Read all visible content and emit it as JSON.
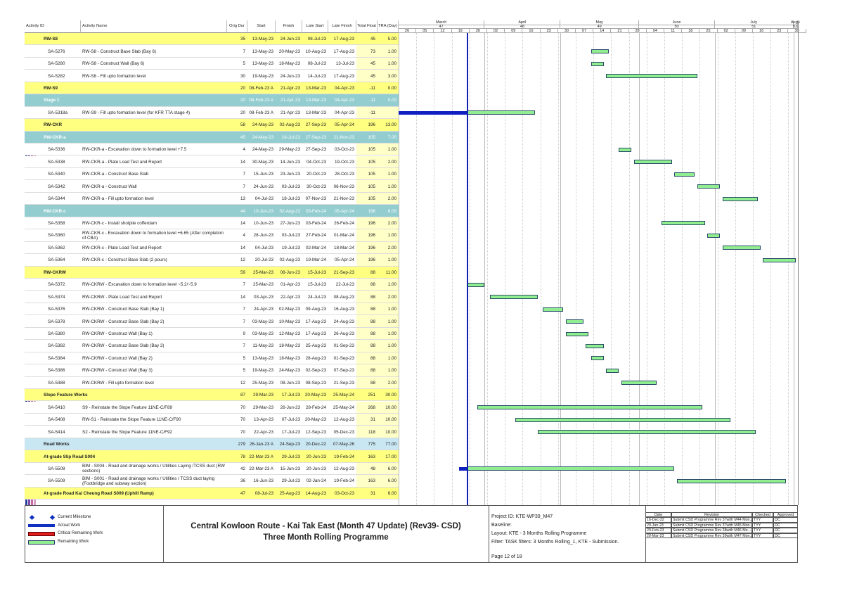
{
  "header": {
    "columns": [
      "Activity ID",
      "Activity Name",
      "Orig Dur",
      "Start",
      "Finish",
      "Late Start",
      "Late Finish",
      "Total Float",
      "TRA (Day)"
    ]
  },
  "timescale": {
    "months": [
      "March",
      "April",
      "May",
      "June",
      "July",
      "Augu"
    ],
    "periods": [
      47,
      48,
      49,
      50,
      51,
      52
    ],
    "days": [
      "26",
      "05",
      "12",
      "19",
      "26",
      "02",
      "09",
      "16",
      "23",
      "30",
      "07",
      "14",
      "21",
      "28",
      "04",
      "11",
      "18",
      "25",
      "02",
      "09",
      "16",
      "23",
      "30"
    ]
  },
  "rows": [
    {
      "id": "RW-S8",
      "dur": 35,
      "start": "13-May-23",
      "finish": "24-Jun-23",
      "late_start": "08-Jul-23",
      "late_finish": "17-Aug-23",
      "float": 45,
      "tra": "5.00",
      "fill": "#ffff80"
    },
    {
      "id": "SA-5276",
      "name": "RW-S8 - Construct Base Slab (Bay 6)",
      "dur": 7,
      "start": "13-May-23",
      "finish": "20-May-23",
      "late_start": "10-Aug-23",
      "late_finish": "17-Aug-23",
      "float": 73,
      "tra": "1.00"
    },
    {
      "id": "SA-5280",
      "name": "RW-S8 - Construct Wall (Bay 6)",
      "dur": 5,
      "start": "13-May-23",
      "finish": "18-May-23",
      "late_start": "08-Jul-23",
      "late_finish": "13-Jul-23",
      "float": 45,
      "tra": "1.00"
    },
    {
      "id": "SA-5282",
      "name": "RW-S8 - Fill upto formation level",
      "dur": 30,
      "start": "19-May-23",
      "finish": "24-Jun-23",
      "late_start": "14-Jul-23",
      "late_finish": "17-Aug-23",
      "float": 45,
      "tra": "3.00"
    },
    {
      "id": "RW-S9",
      "dur": 20,
      "start": "08-Feb-23 A",
      "finish": "21-Apr-23",
      "late_start": "13-Mar-23",
      "late_finish": "04-Apr-23",
      "float": -11,
      "tra": "0.00",
      "fill": "#ffff80"
    },
    {
      "id": "Stage 1",
      "dur": 20,
      "start": "08-Feb-23 A",
      "finish": "21-Apr-23",
      "late_start": "13-Mar-23",
      "late_finish": "04-Apr-23",
      "float": -11,
      "tra": "0.00",
      "fill": "#93cdd0",
      "ink": "#ffffff"
    },
    {
      "id": "SA-5318a",
      "name": "RW-S9 - Fill upto formation level (for KFR TTA stage 4)",
      "dur": 20,
      "start": "08-Feb-23 A",
      "finish": "21-Apr-23",
      "late_start": "13-Mar-23",
      "late_finish": "04-Apr-23",
      "float": -11
    },
    {
      "id": "RW-CKR",
      "dur": 58,
      "start": "24-May-23",
      "finish": "02-Aug-23",
      "late_start": "27-Sep-23",
      "late_finish": "05-Apr-24",
      "float": 196,
      "tra": "13.00",
      "fill": "#ffff80"
    },
    {
      "id": "RW-CKR-a",
      "dur": 45,
      "start": "24-May-23",
      "finish": "18-Jul-23",
      "late_start": "27-Sep-23",
      "late_finish": "21-Nov-23",
      "float": 105,
      "tra": "7.00",
      "fill": "#93cdd0",
      "ink": "#ffffff"
    },
    {
      "id": "SA-5336",
      "name": "RW-CKR-a - Excavation down to formation level +7.5",
      "dur": 4,
      "start": "24-May-23",
      "finish": "29-May-23",
      "late_start": "27-Sep-23",
      "late_finish": "03-Oct-23",
      "float": 105,
      "tra": "1.00"
    },
    {
      "id": "SA-5338",
      "name": "RW-CKR-a - Plate Load Test and Report",
      "dur": 14,
      "start": "30-May-23",
      "finish": "14-Jun-23",
      "late_start": "04-Oct-23",
      "late_finish": "19-Oct-23",
      "float": 105,
      "tra": "2.00"
    },
    {
      "id": "SA-5340",
      "name": "RW-CKR-a - Construct Base Slab",
      "dur": 7,
      "start": "15-Jun-23",
      "finish": "23-Jun-23",
      "late_start": "20-Oct-23",
      "late_finish": "28-Oct-23",
      "float": 105,
      "tra": "1.00"
    },
    {
      "id": "SA-5342",
      "name": "RW-CKR-a - Construct Wall",
      "dur": 7,
      "start": "24-Jun-23",
      "finish": "03-Jul-23",
      "late_start": "30-Oct-23",
      "late_finish": "06-Nov-23",
      "float": 105,
      "tra": "1.00"
    },
    {
      "id": "SA-5344",
      "name": "RW-CKR-a - Fill upto formation level",
      "dur": 13,
      "start": "04-Jul-23",
      "finish": "18-Jul-23",
      "late_start": "07-Nov-23",
      "late_finish": "21-Nov-23",
      "float": 105,
      "tra": "2.00"
    },
    {
      "id": "RW-CKR-c",
      "dur": 44,
      "start": "10-Jun-23",
      "finish": "02-Aug-23",
      "late_start": "03-Feb-24",
      "late_finish": "05-Apr-24",
      "float": 196,
      "tra": "6.00",
      "fill": "#93cdd0",
      "ink": "#ffffff"
    },
    {
      "id": "SA-5358",
      "name": "RW-CKR-c - Install shotpile cofferdam",
      "dur": 14,
      "start": "10-Jun-23",
      "finish": "27-Jun-23",
      "late_start": "03-Feb-24",
      "late_finish": "26-Feb-24",
      "float": 196,
      "tra": "2.00"
    },
    {
      "id": "SA-5360",
      "name": "RW-CKR-c - Excavation down to formation level +6.65 (After completion of CBA)",
      "dur": 4,
      "start": "28-Jun-23",
      "finish": "03-Jul-23",
      "late_start": "27-Feb-24",
      "late_finish": "01-Mar-24",
      "float": 196,
      "tra": "1.00"
    },
    {
      "id": "SA-5362",
      "name": "RW-CKR-c - Plate Load Test and Report",
      "dur": 14,
      "start": "04-Jul-23",
      "finish": "19-Jul-23",
      "late_start": "02-Mar-24",
      "late_finish": "18-Mar-24",
      "float": 196,
      "tra": "2.00"
    },
    {
      "id": "SA-5364",
      "name": "RW-CKR-c - Construct Base Slab (2 pours)",
      "dur": 12,
      "start": "20-Jul-23",
      "finish": "02-Aug-23",
      "late_start": "19-Mar-24",
      "late_finish": "05-Apr-24",
      "float": 196,
      "tra": "1.00"
    },
    {
      "id": "RW-CKRW",
      "dur": 59,
      "start": "25-Mar-23",
      "finish": "08-Jun-23",
      "late_start": "15-Jul-23",
      "late_finish": "21-Sep-23",
      "float": 88,
      "tra": "11.00",
      "fill": "#ffff80"
    },
    {
      "id": "SA-5372",
      "name": "RW-CKRW - Excavation down to formation level ~5.2/~5.9",
      "dur": 7,
      "start": "25-Mar-23",
      "finish": "01-Apr-23",
      "late_start": "15-Jul-23",
      "late_finish": "22-Jul-23",
      "float": 88,
      "tra": "1.00"
    },
    {
      "id": "SA-5374",
      "name": "RW-CKRW - Plate Load Test and Report",
      "dur": 14,
      "start": "03-Apr-23",
      "finish": "22-Apr-23",
      "late_start": "24-Jul-23",
      "late_finish": "08-Aug-23",
      "float": 88,
      "tra": "2.00"
    },
    {
      "id": "SA-5376",
      "name": "RW-CKRW - Construct Base Slab (Bay 1)",
      "dur": 7,
      "start": "24-Apr-23",
      "finish": "02-May-23",
      "late_start": "09-Aug-23",
      "late_finish": "16-Aug-23",
      "float": 88,
      "tra": "1.00"
    },
    {
      "id": "SA-5378",
      "name": "RW-CKRW - Construct Base Slab (Bay 2)",
      "dur": 7,
      "start": "03-May-23",
      "finish": "10-May-23",
      "late_start": "17-Aug-23",
      "late_finish": "24-Aug-23",
      "float": 88,
      "tra": "1.00"
    },
    {
      "id": "SA-5380",
      "name": "RW-CKRW - Construct Wall (Bay 1)",
      "dur": 9,
      "start": "03-May-23",
      "finish": "12-May-23",
      "late_start": "17-Aug-23",
      "late_finish": "26-Aug-23",
      "float": 88,
      "tra": "1.00"
    },
    {
      "id": "SA-5382",
      "name": "RW-CKRW - Construct Base Slab (Bay 3)",
      "dur": 7,
      "start": "11-May-23",
      "finish": "18-May-23",
      "late_start": "25-Aug-23",
      "late_finish": "01-Sep-23",
      "float": 88,
      "tra": "1.00"
    },
    {
      "id": "SA-5384",
      "name": "RW-CKRW - Construct Wall (Bay 2)",
      "dur": 5,
      "start": "13-May-23",
      "finish": "18-May-23",
      "late_start": "28-Aug-23",
      "late_finish": "01-Sep-23",
      "float": 88,
      "tra": "1.00"
    },
    {
      "id": "SA-5386",
      "name": "RW-CKRW - Construct Wall (Bay 3)",
      "dur": 5,
      "start": "19-May-23",
      "finish": "24-May-23",
      "late_start": "02-Sep-23",
      "late_finish": "07-Sep-23",
      "float": 88,
      "tra": "1.00"
    },
    {
      "id": "SA-5388",
      "name": "RW-CKRW - Fill upto formation level",
      "dur": 12,
      "start": "25-May-23",
      "finish": "08-Jun-23",
      "late_start": "08-Sep-23",
      "late_finish": "21-Sep-23",
      "float": 88,
      "tra": "2.00"
    },
    {
      "id": "Slope Feature Works",
      "dur": 87,
      "start": "29-Mar-23",
      "finish": "17-Jul-23",
      "late_start": "20-May-23",
      "late_finish": "25-May-24",
      "float": 251,
      "tra": "30.00",
      "fill": "#ffff80"
    },
    {
      "id": "SA-5410",
      "name": "S9 - Reinstate the Slope Feature 11NE-C/F89",
      "dur": 70,
      "start": "29-Mar-23",
      "finish": "26-Jun-23",
      "late_start": "28-Feb-24",
      "late_finish": "25-May-24",
      "float": 268,
      "tra": "10.00"
    },
    {
      "id": "SA-5408",
      "name": "RW-S1 - Reinstate the Slope Feature 11NE-C/F90",
      "dur": 70,
      "start": "13-Apr-23",
      "finish": "07-Jul-23",
      "late_start": "20-May-23",
      "late_finish": "12-Aug-23",
      "float": 31,
      "tra": "10.00"
    },
    {
      "id": "SA-5414",
      "name": "S2 - Reinstate the Slope Feature 11NE-C/F92",
      "dur": 70,
      "start": "22-Apr-23",
      "finish": "17-Jul-23",
      "late_start": "12-Sep-23",
      "late_finish": "05-Dec-23",
      "float": 118,
      "tra": "10.00"
    },
    {
      "id": "Road Works",
      "dur": 279,
      "start": "26-Jan-23 A",
      "finish": "24-Sep-23",
      "late_start": "20-Dec-22",
      "late_finish": "07-May-26",
      "float": 775,
      "tra": "77.00",
      "fill": "#c9e6f3"
    },
    {
      "id": "At-grade Slip Road S004",
      "dur": 78,
      "start": "22-Mar-23 A",
      "finish": "29-Jul-23",
      "late_start": "20-Jun-23",
      "late_finish": "19-Feb-24",
      "float": 163,
      "tra": "17.00",
      "fill": "#ffff80"
    },
    {
      "id": "SA-5508",
      "name": "BIM - S004 - Road and drainage works / Utilities Laying /TCSS duct (RW sections)",
      "dur": 42,
      "start": "22-Mar-23 A",
      "finish": "15-Jun-23",
      "late_start": "20-Jun-23",
      "late_finish": "12-Aug-23",
      "float": 48,
      "tra": "6.00"
    },
    {
      "id": "SA-5509",
      "name": "BIM - S001 - Road and drainage works / Utilities / TCSS duct laying (Footbridge and subway section)",
      "dur": 36,
      "start": "16-Jun-23",
      "finish": "29-Jul-23",
      "late_start": "02-Jan-24",
      "late_finish": "19-Feb-24",
      "float": 163,
      "tra": "6.00"
    },
    {
      "id": "At-grade Road Kai Cheung Road S009 (Uphill Ramp)",
      "dur": 47,
      "start": "08-Jul-23",
      "finish": "25-Aug-23",
      "late_start": "14-Aug-23",
      "late_finish": "03-Oct-23",
      "float": 31,
      "tra": "6.00",
      "fill": "#ffff80"
    }
  ],
  "legend": [
    "Current Milestone",
    "Actual Work",
    "Critical Remaining Work",
    "Remaining Work"
  ],
  "title": {
    "line1": "Central Kowloon Route - Kai Tak East (Month 47 Update) (Rev39- CSD)",
    "line2": "Three Month Rolling Programme"
  },
  "project": {
    "lines": [
      "Project ID: KTE-WP39_M47",
      "Baseline:",
      "Layout: KTE - 3 Months Rolling Programme",
      "Filter: TASK filters: 3 Months Rolling_1, KTE - Submission."
    ],
    "page": "Page 12 of 18"
  },
  "revisions": {
    "headers": [
      "Date",
      "Revision",
      "Checked",
      "Approved"
    ],
    "rows": [
      [
        "16-Dec-22",
        "Submit CSD Programme Rev 37with M44 Mon...",
        "TYY",
        "DC"
      ],
      [
        "20-Jan-23",
        "Submit CSD Programme Rev 37with M45 Mon...",
        "TYY",
        "DC"
      ],
      [
        "20-Feb-23",
        "Submit CSD Programme Rev 38with M46 Mo...",
        "TYY",
        "DC"
      ],
      [
        "20-Mar-23",
        "Submit CSD Programme Rev 39with M47 Mon...",
        "TYY",
        "DC"
      ]
    ]
  }
}
